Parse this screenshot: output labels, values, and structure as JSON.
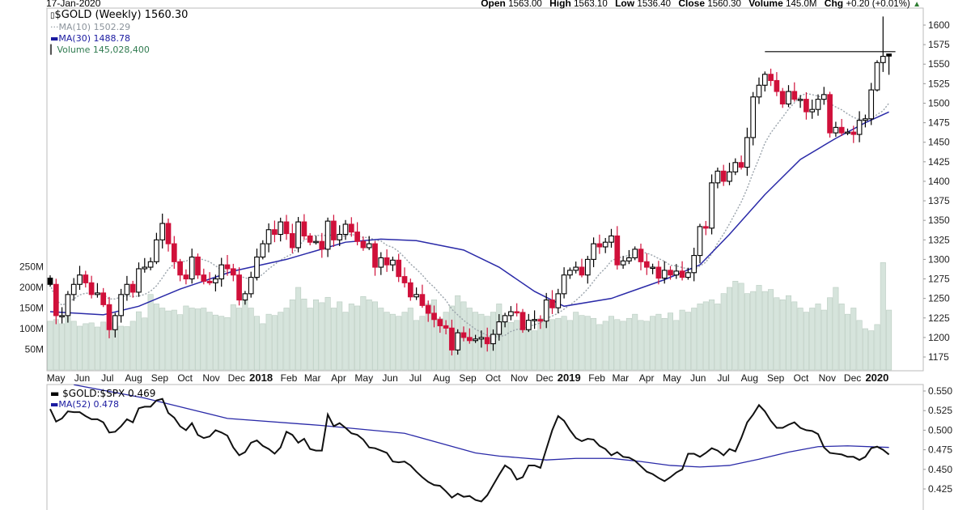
{
  "header": {
    "date": "17-Jan-2020",
    "open_label": "Open",
    "open": "1563.00",
    "high_label": "High",
    "high": "1563.10",
    "low_label": "Low",
    "low": "1536.40",
    "close_label": "Close",
    "close": "1560.30",
    "volume_label": "Volume",
    "volume": "145.0M",
    "chg_label": "Chg",
    "chg": "+0.20 (+0.01%)",
    "chg_icon": "triangle-up-icon"
  },
  "legend": {
    "symbol": "$GOLD (Weekly) 1560.30",
    "ma10": "MA(10) 1502.29",
    "ma30": "MA(30) 1488.78",
    "volume": "Volume 145,028,400",
    "ratio": "$GOLD:$SPX 0.469",
    "ma52": "MA(52) 0.478"
  },
  "colors": {
    "up": "#000000",
    "down": "#d0103a",
    "ma10": "#9aa3ab",
    "ma30": "#2a2aa8",
    "volume_fill": "#d6e4dc",
    "volume_stroke": "#b9ccc0",
    "ratio": "#111111",
    "ma52": "#2a2aa8"
  },
  "chart_data": [
    {
      "type": "candlestick",
      "title": "$GOLD (Weekly)",
      "frequency": "weekly",
      "first_week": "2017-04-28",
      "last_week": "2020-01-17",
      "ylim": [
        1160,
        1620
      ],
      "y_ticks": [
        1175,
        1200,
        1225,
        1250,
        1275,
        1300,
        1325,
        1350,
        1375,
        1400,
        1425,
        1450,
        1475,
        1500,
        1525,
        1550,
        1575,
        1600
      ],
      "y_axis_side": "right",
      "grid": false,
      "close": [
        1268,
        1228,
        1228,
        1255,
        1268,
        1280,
        1270,
        1255,
        1257,
        1242,
        1210,
        1228,
        1255,
        1268,
        1258,
        1288,
        1290,
        1297,
        1325,
        1346,
        1320,
        1297,
        1280,
        1275,
        1303,
        1280,
        1272,
        1270,
        1275,
        1293,
        1288,
        1280,
        1248,
        1256,
        1277,
        1303,
        1320,
        1338,
        1332,
        1348,
        1333,
        1315,
        1348,
        1330,
        1322,
        1323,
        1313,
        1349,
        1325,
        1332,
        1345,
        1335,
        1323,
        1315,
        1320,
        1290,
        1302,
        1293,
        1299,
        1278,
        1270,
        1252,
        1255,
        1241,
        1231,
        1223,
        1215,
        1212,
        1184,
        1206,
        1200,
        1196,
        1198,
        1200,
        1192,
        1204,
        1220,
        1228,
        1233,
        1232,
        1210,
        1222,
        1223,
        1221,
        1248,
        1238,
        1256,
        1280,
        1286,
        1290,
        1280,
        1300,
        1320,
        1316,
        1322,
        1330,
        1293,
        1298,
        1302,
        1313,
        1297,
        1290,
        1290,
        1276,
        1286,
        1280,
        1285,
        1277,
        1283,
        1305,
        1342,
        1340,
        1398,
        1413,
        1400,
        1412,
        1424,
        1418,
        1456,
        1508,
        1523,
        1537,
        1529,
        1515,
        1499,
        1515,
        1505,
        1505,
        1489,
        1492,
        1505,
        1511,
        1462,
        1469,
        1462,
        1463,
        1460,
        1478,
        1480,
        1517,
        1552,
        1560,
        1560.3
      ],
      "recent_bars": [
        {
          "week": "2020-01-03",
          "open": 1517,
          "high": 1555,
          "low": 1515,
          "close": 1552
        },
        {
          "week": "2020-01-10",
          "open": 1552,
          "high": 1611,
          "low": 1540,
          "close": 1560
        },
        {
          "week": "2020-01-17",
          "open": 1563.0,
          "high": 1563.1,
          "low": 1536.4,
          "close": 1560.3
        }
      ],
      "ma10": {
        "period": 10,
        "last": 1502.29
      },
      "ma30": {
        "period": 30,
        "last": 1488.78,
        "points": [
          [
            "2017-04-28",
            1233
          ],
          [
            "2017-06-30",
            1229
          ],
          [
            "2017-08-11",
            1240
          ],
          [
            "2017-09-29",
            1262
          ],
          [
            "2017-12-01",
            1285
          ],
          [
            "2018-02-02",
            1300
          ],
          [
            "2018-04-13",
            1322
          ],
          [
            "2018-05-25",
            1326
          ],
          [
            "2018-07-06",
            1324
          ],
          [
            "2018-08-31",
            1312
          ],
          [
            "2018-10-12",
            1290
          ],
          [
            "2018-11-23",
            1259
          ],
          [
            "2018-12-28",
            1240
          ],
          [
            "2019-02-22",
            1250
          ],
          [
            "2019-04-26",
            1274
          ],
          [
            "2019-06-07",
            1293
          ],
          [
            "2019-07-12",
            1332
          ],
          [
            "2019-08-23",
            1383
          ],
          [
            "2019-10-04",
            1428
          ],
          [
            "2019-11-15",
            1455
          ],
          [
            "2019-12-20",
            1475
          ],
          [
            "2020-01-17",
            1488.78
          ]
        ]
      },
      "resistance_line": {
        "price": 1566,
        "from": "2019-08-23",
        "to": "2020-01-17"
      }
    },
    {
      "type": "bar",
      "title": "Volume",
      "unit": "M",
      "y_ticks": [
        "50M",
        "100M",
        "150M",
        "200M",
        "250M"
      ],
      "y_tick_values": [
        50,
        100,
        150,
        200,
        250
      ],
      "values": [
        118,
        122,
        112,
        128,
        118,
        106,
        112,
        114,
        104,
        116,
        112,
        116,
        106,
        105,
        118,
        141,
        126,
        183,
        160,
        150,
        143,
        145,
        134,
        155,
        150,
        148,
        150,
        140,
        133,
        130,
        127,
        158,
        150,
        170,
        150,
        130,
        112,
        135,
        132,
        140,
        150,
        170,
        200,
        172,
        150,
        170,
        163,
        176,
        150,
        165,
        140,
        160,
        155,
        178,
        170,
        165,
        150,
        140,
        135,
        130,
        140,
        150,
        120,
        130,
        160,
        170,
        125,
        140,
        155,
        180,
        165,
        150,
        140,
        135,
        130,
        140,
        160,
        125,
        115,
        120,
        140,
        115,
        95,
        125,
        115,
        122,
        125,
        130,
        120,
        140,
        132,
        130,
        125,
        110,
        118,
        130,
        122,
        118,
        125,
        135,
        120,
        118,
        130,
        135,
        125,
        138,
        120,
        145,
        140,
        150,
        160,
        165,
        170,
        160,
        185,
        200,
        215,
        210,
        185,
        190,
        205,
        190,
        195,
        175,
        170,
        180,
        165,
        150,
        140,
        150,
        160,
        145,
        175,
        200,
        160,
        135,
        150,
        120,
        100,
        95,
        110,
        260,
        145.0
      ]
    },
    {
      "type": "line",
      "title": "$GOLD:$SPX",
      "ylim": [
        0.405,
        0.555
      ],
      "y_ticks": [
        "0.425",
        "0.450",
        "0.475",
        "0.500",
        "0.525",
        "0.550"
      ],
      "values": [
        0.527,
        0.511,
        0.515,
        0.524,
        0.523,
        0.523,
        0.518,
        0.514,
        0.514,
        0.51,
        0.497,
        0.498,
        0.505,
        0.514,
        0.51,
        0.528,
        0.53,
        0.53,
        0.538,
        0.54,
        0.522,
        0.516,
        0.505,
        0.5,
        0.509,
        0.494,
        0.49,
        0.492,
        0.5,
        0.497,
        0.493,
        0.478,
        0.468,
        0.472,
        0.484,
        0.487,
        0.48,
        0.476,
        0.47,
        0.478,
        0.498,
        0.494,
        0.484,
        0.489,
        0.476,
        0.474,
        0.474,
        0.52,
        0.505,
        0.509,
        0.503,
        0.496,
        0.494,
        0.488,
        0.478,
        0.477,
        0.474,
        0.471,
        0.46,
        0.459,
        0.46,
        0.455,
        0.447,
        0.44,
        0.434,
        0.43,
        0.429,
        0.422,
        0.414,
        0.419,
        0.415,
        0.416,
        0.411,
        0.409,
        0.417,
        0.43,
        0.443,
        0.455,
        0.45,
        0.437,
        0.44,
        0.455,
        0.455,
        0.452,
        0.476,
        0.5,
        0.518,
        0.512,
        0.5,
        0.49,
        0.486,
        0.489,
        0.488,
        0.48,
        0.476,
        0.468,
        0.472,
        0.466,
        0.465,
        0.461,
        0.454,
        0.447,
        0.444,
        0.439,
        0.435,
        0.44,
        0.446,
        0.45,
        0.47,
        0.47,
        0.466,
        0.471,
        0.477,
        0.474,
        0.468,
        0.476,
        0.473,
        0.49,
        0.51,
        0.52,
        0.532,
        0.524,
        0.512,
        0.503,
        0.503,
        0.507,
        0.51,
        0.503,
        0.5,
        0.499,
        0.495,
        0.478,
        0.471,
        0.47,
        0.469,
        0.466,
        0.466,
        0.462,
        0.466,
        0.477,
        0.479,
        0.475,
        0.469
      ],
      "ma52": {
        "period": 52,
        "last": 0.478,
        "points": [
          [
            "2017-05-26",
            0.558
          ],
          [
            "2017-08-18",
            0.541
          ],
          [
            "2017-11-24",
            0.515
          ],
          [
            "2018-03-16",
            0.506
          ],
          [
            "2018-06-22",
            0.496
          ],
          [
            "2018-09-14",
            0.471
          ],
          [
            "2018-10-12",
            0.467
          ],
          [
            "2018-12-07",
            0.462
          ],
          [
            "2019-01-11",
            0.464
          ],
          [
            "2019-02-22",
            0.464
          ],
          [
            "2019-03-29",
            0.46
          ],
          [
            "2019-05-03",
            0.455
          ],
          [
            "2019-06-07",
            0.453
          ],
          [
            "2019-07-12",
            0.455
          ],
          [
            "2019-08-16",
            0.463
          ],
          [
            "2019-09-20",
            0.472
          ],
          [
            "2019-10-25",
            0.479
          ],
          [
            "2019-11-29",
            0.48
          ],
          [
            "2020-01-17",
            0.478
          ]
        ]
      }
    }
  ],
  "x_axis": {
    "labels": [
      {
        "label": "May",
        "date": "2017-05-01"
      },
      {
        "label": "Jun",
        "date": "2017-06-01"
      },
      {
        "label": "Jul",
        "date": "2017-07-01"
      },
      {
        "label": "Aug",
        "date": "2017-08-01"
      },
      {
        "label": "Sep",
        "date": "2017-09-01"
      },
      {
        "label": "Oct",
        "date": "2017-10-01"
      },
      {
        "label": "Nov",
        "date": "2017-11-01"
      },
      {
        "label": "Dec",
        "date": "2017-12-01"
      },
      {
        "label": "2018",
        "date": "2018-01-01",
        "year": true
      },
      {
        "label": "Feb",
        "date": "2018-02-01"
      },
      {
        "label": "Mar",
        "date": "2018-03-01"
      },
      {
        "label": "Apr",
        "date": "2018-04-01"
      },
      {
        "label": "May",
        "date": "2018-05-01"
      },
      {
        "label": "Jun",
        "date": "2018-06-01"
      },
      {
        "label": "Jul",
        "date": "2018-07-01"
      },
      {
        "label": "Aug",
        "date": "2018-08-01"
      },
      {
        "label": "Sep",
        "date": "2018-09-01"
      },
      {
        "label": "Oct",
        "date": "2018-10-01"
      },
      {
        "label": "Nov",
        "date": "2018-11-01"
      },
      {
        "label": "Dec",
        "date": "2018-12-01"
      },
      {
        "label": "2019",
        "date": "2019-01-01",
        "year": true
      },
      {
        "label": "Feb",
        "date": "2019-02-01"
      },
      {
        "label": "Mar",
        "date": "2019-03-01"
      },
      {
        "label": "Apr",
        "date": "2019-04-01"
      },
      {
        "label": "May",
        "date": "2019-05-01"
      },
      {
        "label": "Jun",
        "date": "2019-06-01"
      },
      {
        "label": "Jul",
        "date": "2019-07-01"
      },
      {
        "label": "Aug",
        "date": "2019-08-01"
      },
      {
        "label": "Sep",
        "date": "2019-09-01"
      },
      {
        "label": "Oct",
        "date": "2019-10-01"
      },
      {
        "label": "Nov",
        "date": "2019-11-01"
      },
      {
        "label": "Dec",
        "date": "2019-12-01"
      },
      {
        "label": "2020",
        "date": "2020-01-01",
        "year": true
      }
    ]
  }
}
